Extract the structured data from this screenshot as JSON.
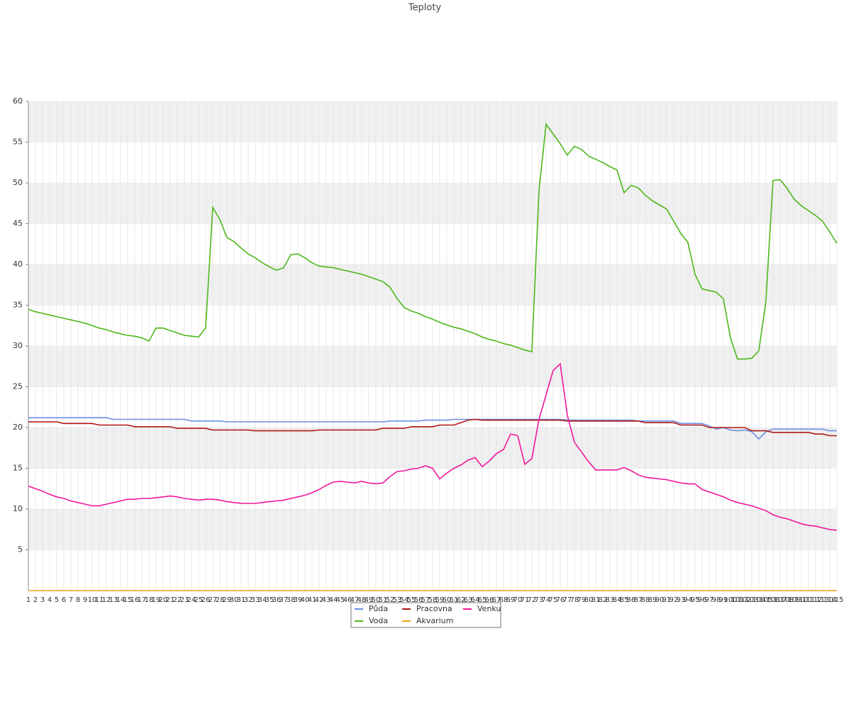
{
  "chart_data": {
    "type": "line",
    "title": "Teploty",
    "categories": [
      1,
      2,
      3,
      4,
      5,
      6,
      7,
      8,
      9,
      10,
      11,
      12,
      13,
      14,
      15,
      16,
      17,
      18,
      19,
      20,
      21,
      22,
      23,
      24,
      25,
      26,
      27,
      28,
      29,
      30,
      31,
      32,
      33,
      34,
      35,
      36,
      37,
      38,
      39,
      40,
      41,
      42,
      43,
      44,
      45,
      46,
      47,
      48,
      49,
      50,
      51,
      52,
      53,
      54,
      55,
      56,
      57,
      58,
      59,
      60,
      61,
      62,
      63,
      64,
      65,
      66,
      67,
      68,
      69,
      70,
      71,
      72,
      73,
      74,
      75,
      76,
      77,
      78,
      79,
      80,
      81,
      82,
      83,
      84,
      85,
      86,
      87,
      88,
      89,
      90,
      91,
      92,
      93,
      94,
      95,
      96,
      97,
      98,
      99,
      100,
      101,
      102,
      103,
      104,
      105,
      106,
      107,
      108,
      109,
      110,
      111,
      112,
      113,
      114,
      115
    ],
    "series": [
      {
        "name": "Půda",
        "color": "#6b8fe6",
        "values": [
          21.2,
          21.2,
          21.2,
          21.2,
          21.2,
          21.2,
          21.2,
          21.2,
          21.2,
          21.2,
          21.2,
          21.2,
          21.0,
          21.0,
          21.0,
          21.0,
          21.0,
          21.0,
          21.0,
          21.0,
          21.0,
          21.0,
          21.0,
          20.8,
          20.8,
          20.8,
          20.8,
          20.8,
          20.7,
          20.7,
          20.7,
          20.7,
          20.7,
          20.7,
          20.7,
          20.7,
          20.7,
          20.7,
          20.7,
          20.7,
          20.7,
          20.7,
          20.7,
          20.7,
          20.7,
          20.7,
          20.7,
          20.7,
          20.7,
          20.7,
          20.7,
          20.8,
          20.8,
          20.8,
          20.8,
          20.8,
          20.9,
          20.9,
          20.9,
          20.9,
          21.0,
          21.0,
          21.0,
          21.0,
          21.0,
          21.0,
          21.0,
          21.0,
          21.0,
          21.0,
          21.0,
          21.0,
          21.0,
          21.0,
          21.0,
          21.0,
          20.9,
          20.9,
          20.9,
          20.9,
          20.9,
          20.9,
          20.9,
          20.9,
          20.9,
          20.9,
          20.8,
          20.8,
          20.8,
          20.8,
          20.8,
          20.8,
          20.5,
          20.5,
          20.5,
          20.5,
          20.2,
          19.8,
          20.0,
          19.7,
          19.6,
          19.7,
          19.5,
          18.6,
          19.5,
          19.8,
          19.8,
          19.8,
          19.8,
          19.8,
          19.8,
          19.8,
          19.8,
          19.6,
          19.6
        ]
      },
      {
        "name": "Pracovna",
        "color": "#b01515",
        "values": [
          20.7,
          20.7,
          20.7,
          20.7,
          20.7,
          20.5,
          20.5,
          20.5,
          20.5,
          20.5,
          20.3,
          20.3,
          20.3,
          20.3,
          20.3,
          20.1,
          20.1,
          20.1,
          20.1,
          20.1,
          20.1,
          19.9,
          19.9,
          19.9,
          19.9,
          19.9,
          19.7,
          19.7,
          19.7,
          19.7,
          19.7,
          19.7,
          19.6,
          19.6,
          19.6,
          19.6,
          19.6,
          19.6,
          19.6,
          19.6,
          19.6,
          19.7,
          19.7,
          19.7,
          19.7,
          19.7,
          19.7,
          19.7,
          19.7,
          19.7,
          19.9,
          19.9,
          19.9,
          19.9,
          20.1,
          20.1,
          20.1,
          20.1,
          20.3,
          20.3,
          20.3,
          20.6,
          20.9,
          21.0,
          20.9,
          20.9,
          20.9,
          20.9,
          20.9,
          20.9,
          20.9,
          20.9,
          20.9,
          20.9,
          20.9,
          20.9,
          20.8,
          20.8,
          20.8,
          20.8,
          20.8,
          20.8,
          20.8,
          20.8,
          20.8,
          20.8,
          20.8,
          20.6,
          20.6,
          20.6,
          20.6,
          20.6,
          20.3,
          20.3,
          20.3,
          20.3,
          20.0,
          20.0,
          20.0,
          20.0,
          20.0,
          20.0,
          19.6,
          19.6,
          19.6,
          19.4,
          19.4,
          19.4,
          19.4,
          19.4,
          19.4,
          19.2,
          19.2,
          19.0,
          19.0
        ]
      },
      {
        "name": "Venku",
        "color": "#f0189a",
        "values": [
          12.8,
          12.5,
          12.2,
          11.8,
          11.5,
          11.3,
          11.0,
          10.8,
          10.6,
          10.4,
          10.4,
          10.6,
          10.8,
          11.0,
          11.2,
          11.2,
          11.3,
          11.3,
          11.4,
          11.5,
          11.6,
          11.5,
          11.3,
          11.2,
          11.1,
          11.2,
          11.2,
          11.1,
          10.9,
          10.8,
          10.7,
          10.7,
          10.7,
          10.8,
          10.9,
          11.0,
          11.1,
          11.3,
          11.5,
          11.7,
          12.0,
          12.4,
          12.9,
          13.3,
          13.4,
          13.3,
          13.2,
          13.4,
          13.2,
          13.1,
          13.2,
          14.0,
          14.6,
          14.7,
          14.9,
          15.0,
          15.3,
          15.0,
          13.7,
          14.4,
          15.0,
          15.4,
          16.0,
          16.3,
          15.2,
          15.9,
          16.8,
          17.3,
          19.2,
          19.0,
          15.5,
          16.2,
          21.0,
          24.0,
          27.0,
          27.8,
          21.5,
          18.2,
          17.0,
          15.8,
          14.8,
          14.8,
          14.8,
          14.8,
          15.1,
          14.7,
          14.2,
          13.9,
          13.8,
          13.7,
          13.6,
          13.4,
          13.2,
          13.1,
          13.1,
          12.4,
          12.1,
          11.8,
          11.5,
          11.1,
          10.8,
          10.6,
          10.4,
          10.1,
          9.8,
          9.3,
          9.0,
          8.8,
          8.5,
          8.2,
          8.0,
          7.9,
          7.7,
          7.5,
          7.4
        ]
      },
      {
        "name": "Voda",
        "color": "#4cb81a",
        "values": [
          34.5,
          34.2,
          34.0,
          33.8,
          33.6,
          33.4,
          33.2,
          33.0,
          32.8,
          32.5,
          32.2,
          32.0,
          31.7,
          31.5,
          31.3,
          31.2,
          31.0,
          30.6,
          32.2,
          32.2,
          31.9,
          31.6,
          31.3,
          31.2,
          31.1,
          32.2,
          47.0,
          45.5,
          43.3,
          42.8,
          42.0,
          41.3,
          40.8,
          40.2,
          39.7,
          39.3,
          39.6,
          41.2,
          41.3,
          40.8,
          40.2,
          39.8,
          39.7,
          39.6,
          39.4,
          39.2,
          39.0,
          38.8,
          38.5,
          38.2,
          37.9,
          37.2,
          35.8,
          34.7,
          34.3,
          34.0,
          33.6,
          33.3,
          32.9,
          32.6,
          32.3,
          32.1,
          31.8,
          31.5,
          31.1,
          30.8,
          30.6,
          30.3,
          30.1,
          29.8,
          29.5,
          29.3,
          49.0,
          57.2,
          56.0,
          54.8,
          53.4,
          54.5,
          54.1,
          53.3,
          52.9,
          52.5,
          52.0,
          51.6,
          48.8,
          49.7,
          49.4,
          48.5,
          47.8,
          47.3,
          46.8,
          45.3,
          43.8,
          42.7,
          38.8,
          37.0,
          36.8,
          36.6,
          35.8,
          31.0,
          28.4,
          28.4,
          28.5,
          29.4,
          35.5,
          50.3,
          50.4,
          49.3,
          48.0,
          47.2,
          46.6,
          46.0,
          45.3,
          44.0,
          42.6
        ]
      },
      {
        "name": "Akvarium",
        "color": "#e8a317",
        "values": [
          0,
          0,
          0,
          0,
          0,
          0,
          0,
          0,
          0,
          0,
          0,
          0,
          0,
          0,
          0,
          0,
          0,
          0,
          0,
          0,
          0,
          0,
          0,
          0,
          0,
          0,
          0,
          0,
          0,
          0,
          0,
          0,
          0,
          0,
          0,
          0,
          0,
          0,
          0,
          0,
          0,
          0,
          0,
          0,
          0,
          0,
          0,
          0,
          0,
          0,
          0,
          0,
          0,
          0,
          0,
          0,
          0,
          0,
          0,
          0,
          0,
          0,
          0,
          0,
          0,
          0,
          0,
          0,
          0,
          0,
          0,
          0,
          0,
          0,
          0,
          0,
          0,
          0,
          0,
          0,
          0,
          0,
          0,
          0,
          0,
          0,
          0,
          0,
          0,
          0,
          0,
          0,
          0,
          0,
          0,
          0,
          0,
          0,
          0,
          0,
          0,
          0,
          0,
          0,
          0,
          0,
          0,
          0,
          0,
          0,
          0,
          0,
          0,
          0,
          0
        ]
      }
    ],
    "ylim": [
      0,
      60
    ],
    "yticks": [
      5,
      10,
      15,
      20,
      25,
      30,
      35,
      40,
      45,
      50,
      55,
      60
    ],
    "grid": true,
    "legend": "bottom"
  }
}
